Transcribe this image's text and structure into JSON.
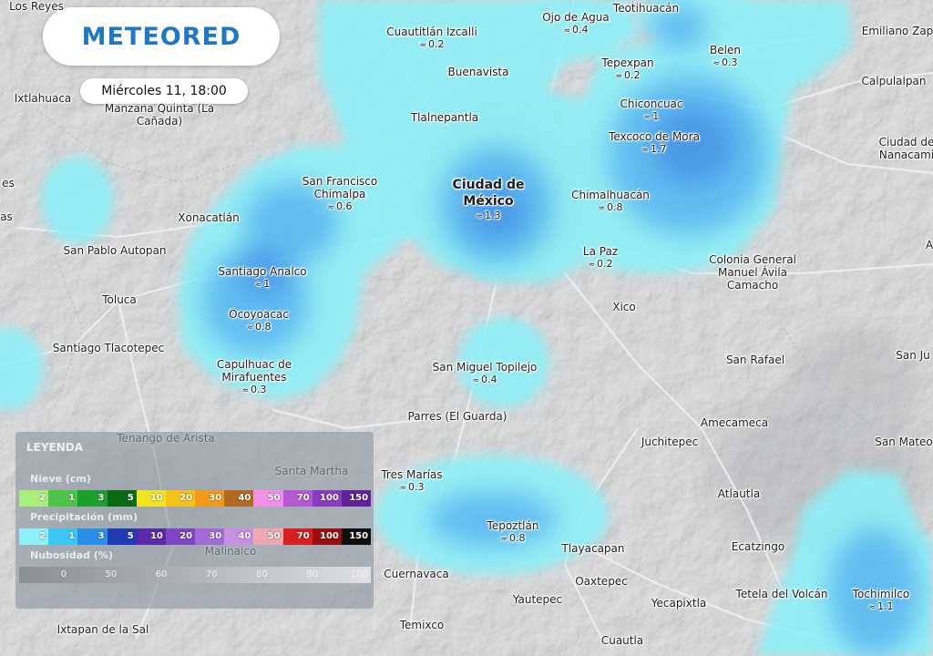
{
  "brand": {
    "logo_text": "METEORED",
    "date": "Miércoles 11, 18:00"
  },
  "colors": {
    "precip_light": "#8ef0f9",
    "precip_mid": "#4cb4f2",
    "precip_dark": "#2a7fe0",
    "map_base": "#cfd0d2",
    "logo_blue": "#1f77c8"
  },
  "icons": {
    "precip_drop": "drops-icon"
  },
  "places": [
    {
      "name": "Los Reyes",
      "precip": null
    },
    {
      "name": "Cuautitlán Izcalli",
      "precip": "0.2"
    },
    {
      "name": "Ojo de Agua",
      "precip": "0.4"
    },
    {
      "name": "Teotihuacán",
      "precip": null
    },
    {
      "name": "Emiliano Zap",
      "precip": null
    },
    {
      "name": "Tepexpan",
      "precip": "0.2"
    },
    {
      "name": "Belen",
      "precip": "0.3"
    },
    {
      "name": "Buenavista",
      "precip": null
    },
    {
      "name": "Ixtlahuaca",
      "precip": null
    },
    {
      "name": "Manzana Quinta (La Cañada)",
      "precip": null
    },
    {
      "name": "Calpulalpan",
      "precip": null
    },
    {
      "name": "Chiconcuac",
      "precip": "1"
    },
    {
      "name": "Tlalnepantla",
      "precip": null
    },
    {
      "name": "Texcoco de Mora",
      "precip": "1.7"
    },
    {
      "name": "Ciudad de Nanacami",
      "precip": null
    },
    {
      "name": "San Francisco Chimalpa",
      "precip": "0.6"
    },
    {
      "name": "Ciudad de México",
      "precip": "1.3"
    },
    {
      "name": "Chimalhuacán",
      "precip": "0.8"
    },
    {
      "name": "Xonacatlán",
      "precip": null
    },
    {
      "name": "San Pablo Autopan",
      "precip": null
    },
    {
      "name": "La Paz",
      "precip": "0.2"
    },
    {
      "name": "Colonia General Manuel Ávila Camacho",
      "precip": null
    },
    {
      "name": "Santiago Analco",
      "precip": "1"
    },
    {
      "name": "Toluca",
      "precip": null
    },
    {
      "name": "Xico",
      "precip": null
    },
    {
      "name": "Ocoyoacac",
      "precip": "0.8"
    },
    {
      "name": "Santiago Tlacotepec",
      "precip": null
    },
    {
      "name": "San Miguel Topilejo",
      "precip": "0.4"
    },
    {
      "name": "San Rafael",
      "precip": null
    },
    {
      "name": "Capulhuac de Mirafuentes",
      "precip": "0.3"
    },
    {
      "name": "San Ju",
      "precip": null
    },
    {
      "name": "Parres (El Guarda)",
      "precip": null
    },
    {
      "name": "Amecameca",
      "precip": null
    },
    {
      "name": "Tenango de Arista",
      "precip": null
    },
    {
      "name": "Juchitepec",
      "precip": null
    },
    {
      "name": "San Mateo",
      "precip": null
    },
    {
      "name": "Santa Martha",
      "precip": null
    },
    {
      "name": "Tres Marías",
      "precip": "0.3"
    },
    {
      "name": "Atlautla",
      "precip": null
    },
    {
      "name": "Tepoztlán",
      "precip": "0.8"
    },
    {
      "name": "Tlayacapan",
      "precip": null
    },
    {
      "name": "Ecatzingo",
      "precip": null
    },
    {
      "name": "Malinalco",
      "precip": null
    },
    {
      "name": "Cuernavaca",
      "precip": null
    },
    {
      "name": "Oaxtepec",
      "precip": null
    },
    {
      "name": "Tetela del Volcán",
      "precip": null
    },
    {
      "name": "Tochimilco",
      "precip": "1.1"
    },
    {
      "name": "Yautepec",
      "precip": null
    },
    {
      "name": "Yecapixtla",
      "precip": null
    },
    {
      "name": "Ixtapan de la Sal",
      "precip": null
    },
    {
      "name": "Temixco",
      "precip": null
    },
    {
      "name": "Cuautla",
      "precip": null
    },
    {
      "name": "es",
      "precip": null
    },
    {
      "name": "as",
      "precip": null
    },
    {
      "name": "A",
      "precip": null
    }
  ],
  "legend": {
    "title": "LEYENDA",
    "snow": {
      "label": "Nieve (cm)",
      "steps": [
        {
          "value": "2",
          "color": "#a8f07a"
        },
        {
          "value": "1",
          "color": "#4cc44c"
        },
        {
          "value": "3",
          "color": "#1e9e2e"
        },
        {
          "value": "5",
          "color": "#0b6b15"
        },
        {
          "value": "10",
          "color": "#f2e422"
        },
        {
          "value": "20",
          "color": "#f5c21a"
        },
        {
          "value": "30",
          "color": "#f29a1a"
        },
        {
          "value": "40",
          "color": "#b06a22"
        },
        {
          "value": "50",
          "color": "#f090e8"
        },
        {
          "value": "70",
          "color": "#b45ad0"
        },
        {
          "value": "100",
          "color": "#8a3cc0"
        },
        {
          "value": "150",
          "color": "#62209a"
        }
      ]
    },
    "precip": {
      "label": "Precipitación (mm)",
      "steps": [
        {
          "value": "2",
          "color": "#8ef0f9"
        },
        {
          "value": "1",
          "color": "#3cc6f4"
        },
        {
          "value": "3",
          "color": "#2b8ee8"
        },
        {
          "value": "5",
          "color": "#1e3cb4"
        },
        {
          "value": "10",
          "color": "#5a2aa8"
        },
        {
          "value": "20",
          "color": "#7e46c2"
        },
        {
          "value": "30",
          "color": "#a26ad6"
        },
        {
          "value": "40",
          "color": "#c890e2"
        },
        {
          "value": "50",
          "color": "#f0a8b0"
        },
        {
          "value": "70",
          "color": "#d81e1e"
        },
        {
          "value": "100",
          "color": "#9a1010"
        },
        {
          "value": "150",
          "color": "#101010"
        }
      ]
    },
    "cloud": {
      "label": "Nubosidad (%)",
      "steps": [
        {
          "value": "0"
        },
        {
          "value": "50"
        },
        {
          "value": "60"
        },
        {
          "value": "70"
        },
        {
          "value": "80"
        },
        {
          "value": "90"
        },
        {
          "value": "100"
        }
      ]
    }
  }
}
